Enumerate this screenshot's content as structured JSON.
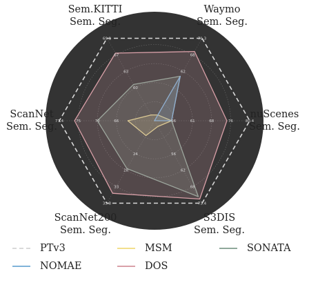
{
  "chart_data": {
    "type": "radar",
    "axes": [
      {
        "label": [
          "Waymo",
          "Sem. Seg."
        ],
        "max": 71.3,
        "rings": [
          "62",
          "68"
        ]
      },
      {
        "label": [
          "nuScenes",
          "Sem. Seg."
        ],
        "max": 80.4,
        "rings": [
          "56",
          "61",
          "68",
          "76"
        ]
      },
      {
        "label": [
          "S3DIS",
          "Sem. Seg."
        ],
        "max": 73.4,
        "rings": [
          "56",
          "62",
          "68"
        ]
      },
      {
        "label": [
          "ScanNet200",
          "Sem. Seg."
        ],
        "max": 35.3,
        "rings": [
          "24",
          "28",
          "33"
        ]
      },
      {
        "label": [
          "ScanNet",
          "Sem. Seg."
        ],
        "max": 77.4,
        "rings": [
          "66",
          "70",
          "75"
        ]
      },
      {
        "label": [
          "Sem.KITTI",
          "Sem. Seg."
        ],
        "max": 69.1,
        "rings": [
          "60",
          "63",
          "67"
        ]
      }
    ],
    "max_labels": [
      "71.3",
      "80.4",
      "73.4",
      "35.3",
      "77.4",
      "69.1"
    ],
    "series": [
      {
        "name": "PTv3",
        "color": "#d9d9d9",
        "dash": true,
        "values": [
          1.0,
          1.0,
          1.0,
          1.0,
          1.0,
          1.0
        ]
      },
      {
        "name": "MSM",
        "color": "#f2df8c",
        "values": [
          0.07,
          0.18,
          0.07,
          0.18,
          0.28,
          0.07
        ]
      },
      {
        "name": "SONATA",
        "color": "#8fa89a",
        "values": [
          0.54,
          0.18,
          0.92,
          0.58,
          0.6,
          0.44
        ]
      },
      {
        "name": "NOMAE",
        "color": "#7fb3d9",
        "values": [
          0.54,
          0.18,
          0.0,
          0.0,
          0.0,
          0.0
        ]
      },
      {
        "name": "DOS",
        "color": "#d9a0a8",
        "values": [
          0.84,
          0.76,
          0.95,
          0.88,
          0.84,
          0.82
        ]
      }
    ],
    "legend": {
      "placement": "bottom",
      "rows": [
        [
          "PTv3",
          "MSM",
          "SONATA"
        ],
        [
          "NOMAE",
          "DOS"
        ]
      ]
    }
  }
}
